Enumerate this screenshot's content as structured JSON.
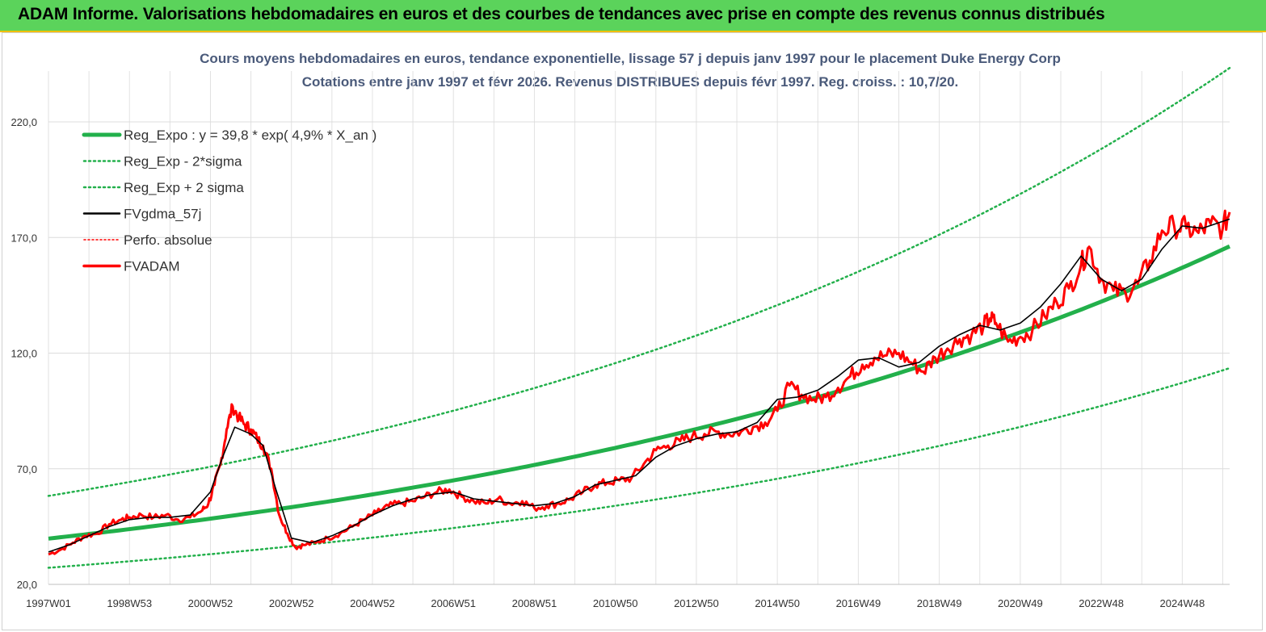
{
  "banner": {
    "title": "ADAM Informe. Valorisations hebdomadaires en euros et des courbes de tendances avec prise en compte des revenus connus distribués"
  },
  "colors": {
    "banner_bg": "#5bd35b",
    "regression": "#22b04b",
    "fvgdma": "#000000",
    "fvadam": "#ff0000",
    "perfo": "#ff0000",
    "title_text": "#4a5a7a"
  },
  "chart_data": {
    "type": "line",
    "title_line1": "Cours moyens hebdomadaires en euros, tendance exponentielle, lissage 57 j depuis janv 1997 pour le placement Duke Energy Corp",
    "title_line2": "Cotations entre janv 1997 et févr 2026. Revenus DISTRIBUES depuis févr 1997. Reg. croiss. : 10,7/20.",
    "xlabel": "",
    "ylabel": "",
    "ylim": [
      20,
      242
    ],
    "xlim": [
      1997.0,
      2026.17
    ],
    "y_ticks": [
      "20,0",
      "70,0",
      "120,0",
      "170,0",
      "220,0"
    ],
    "x_ticks": [
      {
        "label": "1997W01",
        "year": 1997.0
      },
      {
        "label": "1998W53",
        "year": 1999.0
      },
      {
        "label": "2000W52",
        "year": 2001.0
      },
      {
        "label": "2002W52",
        "year": 2003.0
      },
      {
        "label": "2004W52",
        "year": 2005.0
      },
      {
        "label": "2006W51",
        "year": 2007.0
      },
      {
        "label": "2008W51",
        "year": 2009.0
      },
      {
        "label": "2010W50",
        "year": 2011.0
      },
      {
        "label": "2012W50",
        "year": 2013.0
      },
      {
        "label": "2014W50",
        "year": 2015.0
      },
      {
        "label": "2016W49",
        "year": 2017.0
      },
      {
        "label": "2018W49",
        "year": 2019.0
      },
      {
        "label": "2020W49",
        "year": 2021.0
      },
      {
        "label": "2022W48",
        "year": 2023.0
      },
      {
        "label": "2024W48",
        "year": 2025.0
      }
    ],
    "grid": true,
    "legend_placement": "top-left",
    "legend": [
      {
        "label": "Reg_Expo : y = 39,8 * exp( 4,9% *  X_an )",
        "style": "thick-green"
      },
      {
        "label": "Reg_Exp - 2*sigma",
        "style": "dotted-green"
      },
      {
        "label": "Reg_Exp + 2 sigma",
        "style": "dotted-green"
      },
      {
        "label": "FVgdma_57j",
        "style": "solid-black"
      },
      {
        "label": "Perfo. absolue",
        "style": "dotted-red"
      },
      {
        "label": "FVADAM",
        "style": "solid-red"
      }
    ],
    "regression": {
      "a": 39.8,
      "rate": 0.049,
      "start_year": 1997.0,
      "lower_factor": 0.683,
      "upper_factor": 1.464
    },
    "series": [
      {
        "name": "FVADAM",
        "x": [
          1997.0,
          1997.3,
          1997.6,
          1997.9,
          1998.2,
          1998.5,
          1998.8,
          1999.0,
          1999.3,
          1999.6,
          1999.9,
          2000.2,
          2000.5,
          2000.8,
          2000.95,
          2001.1,
          2001.25,
          2001.4,
          2001.55,
          2001.7,
          2001.85,
          2002.0,
          2002.15,
          2002.3,
          2002.5,
          2002.7,
          2002.9,
          2003.1,
          2003.3,
          2003.6,
          2003.9,
          2004.2,
          2004.5,
          2004.8,
          2005.1,
          2005.4,
          2005.7,
          2006.0,
          2006.3,
          2006.6,
          2006.9,
          2007.2,
          2007.5,
          2007.8,
          2008.1,
          2008.4,
          2008.7,
          2009.0,
          2009.3,
          2009.6,
          2009.9,
          2010.2,
          2010.5,
          2010.8,
          2011.1,
          2011.4,
          2011.7,
          2012.0,
          2012.3,
          2012.6,
          2012.9,
          2013.2,
          2013.5,
          2013.8,
          2014.1,
          2014.4,
          2014.7,
          2015.0,
          2015.3,
          2015.6,
          2015.9,
          2016.2,
          2016.5,
          2016.8,
          2017.1,
          2017.4,
          2017.7,
          2018.0,
          2018.3,
          2018.6,
          2018.9,
          2019.2,
          2019.5,
          2019.8,
          2020.1,
          2020.25,
          2020.4,
          2020.7,
          2021.0,
          2021.3,
          2021.6,
          2021.9,
          2022.2,
          2022.5,
          2022.7,
          2023.0,
          2023.3,
          2023.6,
          2023.9,
          2024.2,
          2024.5,
          2024.8,
          2025.1,
          2025.4,
          2025.7,
          2026.0,
          2026.17
        ],
        "values": [
          33,
          35,
          38,
          41,
          42,
          46,
          48,
          49,
          50,
          49,
          50,
          48,
          49,
          52,
          55,
          63,
          72,
          87,
          97,
          92,
          89,
          87,
          83,
          80,
          70,
          50,
          42,
          36,
          37,
          38,
          40,
          42,
          45,
          48,
          51,
          54,
          55,
          56,
          58,
          60,
          61,
          58,
          56,
          55,
          57,
          55,
          56,
          53,
          54,
          55,
          57,
          60,
          63,
          64,
          65,
          66,
          72,
          78,
          80,
          82,
          84,
          85,
          86,
          85,
          86,
          88,
          90,
          95,
          106,
          102,
          100,
          101,
          105,
          110,
          115,
          118,
          119,
          120,
          116,
          112,
          118,
          122,
          126,
          128,
          132,
          135,
          133,
          125,
          127,
          130,
          136,
          142,
          148,
          158,
          166,
          152,
          147,
          146,
          150,
          160,
          173,
          175,
          174,
          172,
          176,
          174,
          181
        ]
      },
      {
        "name": "FVgdma_57j",
        "x": [
          1997.0,
          1997.5,
          1998.0,
          1998.5,
          1999.0,
          1999.5,
          2000.0,
          2000.5,
          2001.0,
          2001.3,
          2001.6,
          2002.0,
          2002.3,
          2002.6,
          2003.0,
          2003.5,
          2004.0,
          2004.5,
          2005.0,
          2005.5,
          2006.0,
          2006.5,
          2007.0,
          2007.5,
          2008.0,
          2008.5,
          2009.0,
          2009.5,
          2010.0,
          2010.5,
          2011.0,
          2011.5,
          2012.0,
          2012.5,
          2013.0,
          2013.5,
          2014.0,
          2014.5,
          2015.0,
          2015.5,
          2016.0,
          2016.5,
          2017.0,
          2017.5,
          2018.0,
          2018.5,
          2019.0,
          2019.5,
          2020.0,
          2020.5,
          2021.0,
          2021.5,
          2022.0,
          2022.5,
          2023.0,
          2023.5,
          2024.0,
          2024.5,
          2025.0,
          2025.5,
          2026.17
        ],
        "values": [
          34,
          37,
          41,
          45,
          48,
          49,
          49,
          50,
          60,
          75,
          88,
          85,
          80,
          62,
          40,
          38,
          41,
          45,
          50,
          54,
          57,
          59,
          60,
          57,
          56,
          55,
          54,
          55,
          58,
          63,
          65,
          67,
          75,
          80,
          83,
          85,
          86,
          90,
          100,
          101,
          104,
          110,
          117,
          118,
          114,
          116,
          123,
          128,
          132,
          130,
          133,
          140,
          150,
          162,
          152,
          147,
          152,
          165,
          175,
          174,
          178
        ]
      }
    ]
  }
}
